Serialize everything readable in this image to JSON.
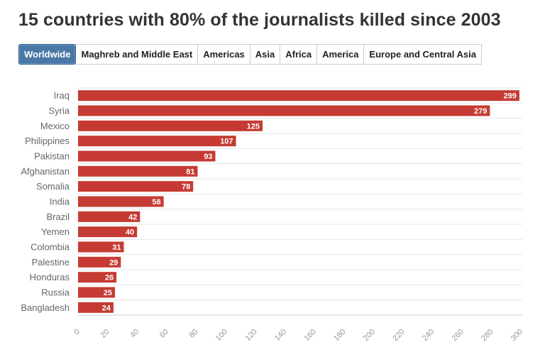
{
  "title": "15 countries with 80% of the journalists killed since 2003",
  "tabs": [
    {
      "label": "Worldwide",
      "active": true
    },
    {
      "label": "Maghreb and Middle East",
      "active": false
    },
    {
      "label": "Americas",
      "active": false
    },
    {
      "label": "Asia",
      "active": false
    },
    {
      "label": "Africa",
      "active": false
    },
    {
      "label": "America",
      "active": false
    },
    {
      "label": "Europe and Central Asia",
      "active": false
    }
  ],
  "colors": {
    "bar": "#c53b33",
    "active_tab": "#4a78a6",
    "grid": "#e6e6e6"
  },
  "chart_data": {
    "type": "bar",
    "orientation": "horizontal",
    "categories": [
      "Iraq",
      "Syria",
      "Mexico",
      "Philippines",
      "Pakistan",
      "Afghanistan",
      "Somalia",
      "India",
      "Brazil",
      "Yemen",
      "Colombia",
      "Palestine",
      "Honduras",
      "Russia",
      "Bangladesh"
    ],
    "values": [
      299,
      279,
      125,
      107,
      93,
      81,
      78,
      58,
      42,
      40,
      31,
      29,
      26,
      25,
      24
    ],
    "xlim": [
      0,
      300
    ],
    "xticks": [
      0,
      20,
      40,
      60,
      80,
      100,
      120,
      140,
      160,
      180,
      200,
      220,
      240,
      260,
      280,
      300
    ],
    "grid": true,
    "data_labels": true
  }
}
